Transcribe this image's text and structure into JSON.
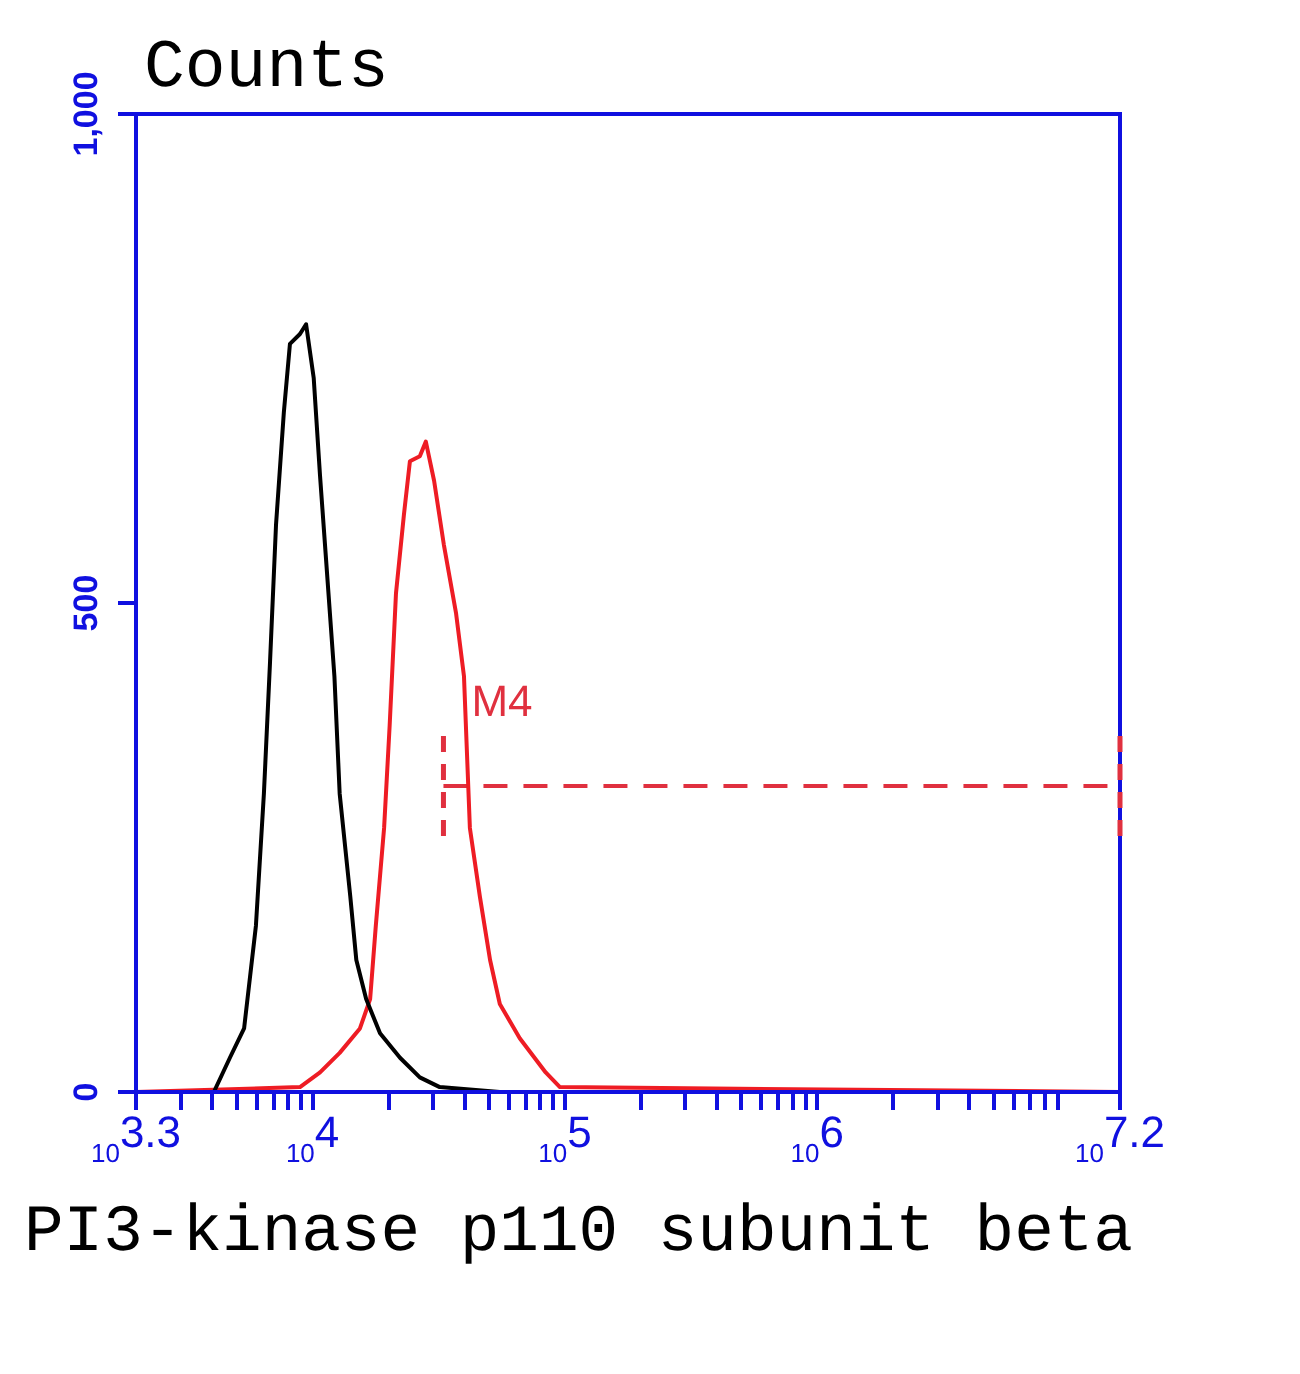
{
  "chart_data": {
    "type": "line",
    "title": "Counts",
    "xlabel": "PI3-kinase p110 subunit beta",
    "log": "x",
    "grid": false,
    "legend": false,
    "marker": "none",
    "line_style": "solid",
    "xlim": [
      1995,
      15848932
    ],
    "xticks": [
      {
        "value": 1995,
        "label": "10$^{3.3}$"
      },
      {
        "value": 3000,
        "label": null
      },
      {
        "value": 4000,
        "label": null
      },
      {
        "value": 5000,
        "label": null
      },
      {
        "value": 6000,
        "label": null
      },
      {
        "value": 7000,
        "label": null
      },
      {
        "value": 8000,
        "label": null
      },
      {
        "value": 9000,
        "label": null
      },
      {
        "value": 10000,
        "label": "10$^{4}$"
      },
      {
        "value": 20000,
        "label": null
      },
      {
        "value": 30000,
        "label": null
      },
      {
        "value": 40000,
        "label": null
      },
      {
        "value": 50000,
        "label": null
      },
      {
        "value": 60000,
        "label": null
      },
      {
        "value": 70000,
        "label": null
      },
      {
        "value": 80000,
        "label": null
      },
      {
        "value": 90000,
        "label": null
      },
      {
        "value": 100000,
        "label": "10$^{5}$"
      },
      {
        "value": 200000,
        "label": null
      },
      {
        "value": 300000,
        "label": null
      },
      {
        "value": 400000,
        "label": null
      },
      {
        "value": 500000,
        "label": null
      },
      {
        "value": 600000,
        "label": null
      },
      {
        "value": 700000,
        "label": null
      },
      {
        "value": 800000,
        "label": null
      },
      {
        "value": 900000,
        "label": null
      },
      {
        "value": 1000000,
        "label": "10$^{6}$"
      },
      {
        "value": 2000000,
        "label": null
      },
      {
        "value": 3000000,
        "label": null
      },
      {
        "value": 4000000,
        "label": null
      },
      {
        "value": 5000000,
        "label": null
      },
      {
        "value": 6000000,
        "label": null
      },
      {
        "value": 7000000,
        "label": null
      },
      {
        "value": 8000000,
        "label": null
      },
      {
        "value": 9000000,
        "label": null
      },
      {
        "value": 15848932,
        "label": "10$^{7.2}$"
      }
    ],
    "ylim": [
      0,
      1000
    ],
    "yticks": [
      0,
      500,
      {
        "value": 1000,
        "label": "1,000"
      }
    ],
    "series": [
      {
        "color": "#000000",
        "x": [
          4060,
          4700,
          5350,
          5960,
          6410,
          6780,
          7160,
          7690,
          8130,
          8910,
          9420,
          10100,
          10700,
          11300,
          12200,
          12800,
          14100,
          14900,
          16300,
          18500,
          22200,
          26600,
          31900,
          55200
        ],
        "values": [
          0,
          35,
          65,
          170,
          305,
          440,
          580,
          695,
          765,
          775,
          785,
          730,
          630,
          545,
          425,
          305,
          200,
          135,
          95,
          60,
          35,
          15,
          5,
          0
        ]
      },
      {
        "color": "#ee1c24",
        "x": [
          1995,
          8910,
          10700,
          12800,
          15400,
          16900,
          17800,
          19200,
          20200,
          21400,
          23000,
          24300,
          26600,
          28100,
          30300,
          33100,
          37000,
          39800,
          42000,
          46000,
          50500,
          55200,
          66200,
          83900,
          95500,
          15800000
        ],
        "values": [
          0,
          5,
          20,
          40,
          65,
          95,
          170,
          270,
          375,
          510,
          590,
          645,
          650,
          665,
          625,
          560,
          490,
          425,
          270,
          200,
          135,
          90,
          55,
          20,
          5,
          0
        ]
      },
      {
        "name": "M4",
        "color": "#e0303f",
        "line_style": "dashed",
        "x": [
          33000,
          15848932
        ],
        "values": [
          313,
          313
        ]
      }
    ]
  }
}
